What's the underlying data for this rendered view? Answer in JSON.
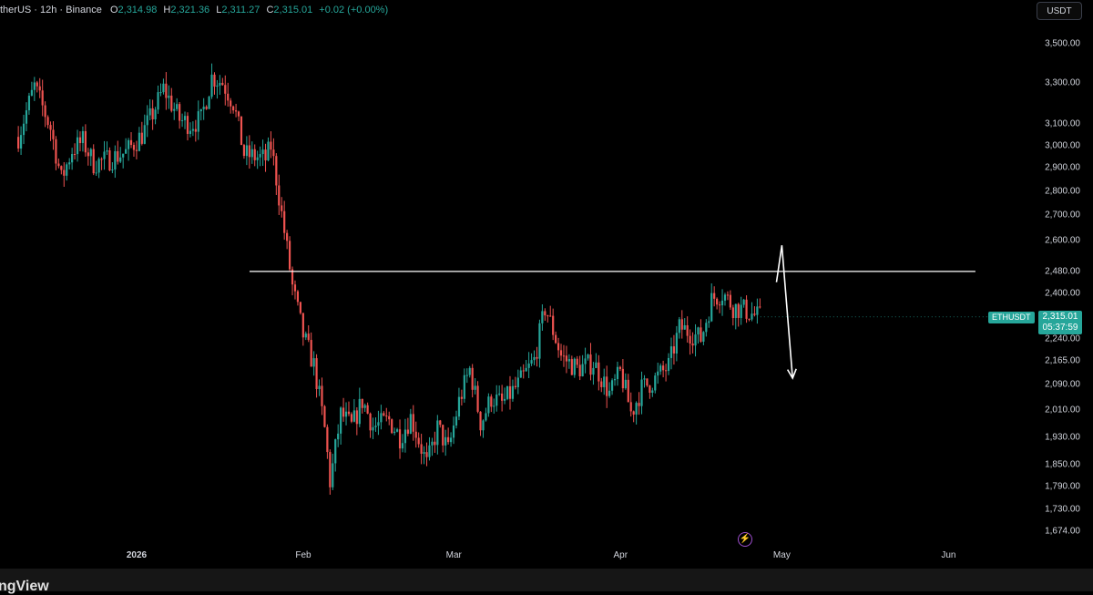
{
  "header": {
    "symbol_title": "therUS · 12h · Binance",
    "open_label": "O",
    "open": "2,314.98",
    "high_label": "H",
    "high": "2,321.36",
    "low_label": "L",
    "low": "2,311.27",
    "close_label": "C",
    "close": "2,315.01",
    "change": "+0.02 (+0.00%)"
  },
  "currency_button": "USDT",
  "symbol_tag": "ETHUSDT",
  "last_price": "2,315.01",
  "countdown": "05:37:59",
  "footer_logo": "ngView",
  "colors": {
    "up": "#26a69a",
    "down": "#ef5350",
    "background": "#000000",
    "annotation": "#ffffff"
  },
  "chart_data": {
    "type": "candlestick",
    "interval": "12h",
    "scale": "log",
    "ylim": [
      1650,
      3600
    ],
    "y_ticks": [
      "3,500.00",
      "3,300.00",
      "3,100.00",
      "3,000.00",
      "2,900.00",
      "2,800.00",
      "2,700.00",
      "2,600.00",
      "2,480.00",
      "2,400.00",
      "2,315.01",
      "2,240.00",
      "2,165.00",
      "2,090.00",
      "2,010.00",
      "1,930.00",
      "1,850.00",
      "1,790.00",
      "1,730.00",
      "1,674.00"
    ],
    "x_ticks": [
      "2026",
      "Feb",
      "Mar",
      "Apr",
      "May",
      "Jun"
    ],
    "close_path": [
      [
        "2025-12-10",
        3040
      ],
      [
        "2025-12-13",
        3280
      ],
      [
        "2025-12-16",
        3080
      ],
      [
        "2025-12-18",
        2850
      ],
      [
        "2025-12-20",
        2980
      ],
      [
        "2025-12-22",
        3020
      ],
      [
        "2025-12-24",
        2920
      ],
      [
        "2025-12-27",
        2940
      ],
      [
        "2025-12-30",
        2970
      ],
      [
        "2026-01-02",
        3050
      ],
      [
        "2026-01-04",
        3150
      ],
      [
        "2026-01-06",
        3270
      ],
      [
        "2026-01-09",
        3120
      ],
      [
        "2026-01-11",
        3100
      ],
      [
        "2026-01-13",
        3120
      ],
      [
        "2026-01-15",
        3330
      ],
      [
        "2026-01-17",
        3300
      ],
      [
        "2026-01-19",
        3200
      ],
      [
        "2026-01-21",
        2960
      ],
      [
        "2026-01-23",
        2950
      ],
      [
        "2026-01-25",
        2940
      ],
      [
        "2026-01-26",
        3000
      ],
      [
        "2026-01-28",
        2700
      ],
      [
        "2026-01-30",
        2420
      ],
      [
        "2026-02-01",
        2250
      ],
      [
        "2026-02-03",
        2150
      ],
      [
        "2026-02-05",
        1950
      ],
      [
        "2026-02-06",
        1800
      ],
      [
        "2026-02-08",
        2000
      ],
      [
        "2026-02-10",
        1960
      ],
      [
        "2026-02-12",
        2040
      ],
      [
        "2026-02-14",
        1960
      ],
      [
        "2026-02-17",
        1980
      ],
      [
        "2026-02-19",
        1930
      ],
      [
        "2026-02-21",
        1990
      ],
      [
        "2026-02-24",
        1850
      ],
      [
        "2026-02-26",
        1960
      ],
      [
        "2026-02-28",
        1890
      ],
      [
        "2026-03-02",
        2040
      ],
      [
        "2026-03-04",
        2140
      ],
      [
        "2026-03-06",
        1970
      ],
      [
        "2026-03-08",
        2050
      ],
      [
        "2026-03-10",
        2030
      ],
      [
        "2026-03-13",
        2090
      ],
      [
        "2026-03-16",
        2170
      ],
      [
        "2026-03-18",
        2350
      ],
      [
        "2026-03-21",
        2180
      ],
      [
        "2026-03-24",
        2140
      ],
      [
        "2026-03-27",
        2160
      ],
      [
        "2026-03-30",
        2060
      ],
      [
        "2026-04-01",
        2130
      ],
      [
        "2026-04-03",
        2000
      ],
      [
        "2026-04-05",
        2080
      ],
      [
        "2026-04-07",
        2100
      ],
      [
        "2026-04-10",
        2150
      ],
      [
        "2026-04-12",
        2280
      ],
      [
        "2026-04-14",
        2260
      ],
      [
        "2026-04-16",
        2240
      ],
      [
        "2026-04-18",
        2380
      ],
      [
        "2026-04-20",
        2400
      ],
      [
        "2026-04-22",
        2350
      ],
      [
        "2026-04-24",
        2340
      ],
      [
        "2026-04-26",
        2320
      ],
      [
        "2026-04-27",
        2315
      ]
    ],
    "horizontal_line": {
      "price": 2480,
      "from": "2026-01-22",
      "to": "2026-06-06"
    },
    "projection_arrow": [
      [
        "2026-04-30",
        2440
      ],
      [
        "2026-05-01",
        2580
      ],
      [
        "2026-05-03",
        2110
      ]
    ]
  }
}
